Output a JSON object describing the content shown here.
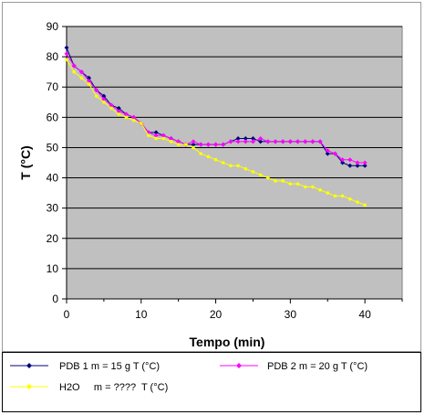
{
  "chart_data": {
    "type": "line",
    "title": "",
    "xlabel": "Tempo (min)",
    "ylabel": "T (°C)",
    "xlim": [
      0,
      45
    ],
    "ylim": [
      0,
      90
    ],
    "xticks": [
      0,
      10,
      20,
      30,
      40
    ],
    "yticks": [
      0,
      10,
      20,
      30,
      40,
      50,
      60,
      70,
      80,
      90
    ],
    "grid": "horizontal",
    "plot_background": "#c0c0c0",
    "legend_position": "bottom",
    "series": [
      {
        "name": "PDB 1  m = 15 g T (°C)",
        "color": "#000080",
        "marker": "diamond",
        "x": [
          0,
          1,
          2,
          3,
          4,
          5,
          6,
          7,
          8,
          9,
          10,
          11,
          12,
          13,
          14,
          15,
          16,
          17,
          18,
          19,
          20,
          21,
          22,
          23,
          24,
          25,
          26,
          27,
          28,
          29,
          30,
          31,
          32,
          33,
          34,
          35,
          36,
          37,
          38,
          39,
          40
        ],
        "y": [
          83,
          77,
          75,
          73,
          69,
          67,
          64,
          63,
          61,
          60,
          58,
          55,
          55,
          54,
          53,
          52,
          51,
          51,
          51,
          51,
          51,
          51,
          52,
          53,
          53,
          53,
          52,
          52,
          52,
          52,
          52,
          52,
          52,
          52,
          52,
          48,
          48,
          45,
          44,
          44,
          44
        ]
      },
      {
        "name": "PDB 2  m = 20 g T (°C)",
        "color": "#ff00ff",
        "marker": "diamond",
        "x": [
          0,
          1,
          2,
          3,
          4,
          5,
          6,
          7,
          8,
          9,
          10,
          11,
          12,
          13,
          14,
          15,
          16,
          17,
          18,
          19,
          20,
          21,
          22,
          23,
          24,
          25,
          26,
          27,
          28,
          29,
          30,
          31,
          32,
          33,
          34,
          35,
          36,
          37,
          38,
          39,
          40
        ],
        "y": [
          81,
          77,
          75,
          72,
          69,
          66,
          64,
          62,
          61,
          60,
          58,
          55,
          54,
          54,
          53,
          52,
          51,
          52,
          51,
          51,
          51,
          51,
          52,
          52,
          52,
          52,
          53,
          52,
          52,
          52,
          52,
          52,
          52,
          52,
          52,
          49,
          48,
          46,
          46,
          45,
          45
        ]
      },
      {
        "name": "H2O     m = ????  T (°C)",
        "color": "#ffff00",
        "marker": "circle",
        "x": [
          0,
          1,
          2,
          3,
          4,
          5,
          6,
          7,
          8,
          9,
          10,
          11,
          12,
          13,
          14,
          15,
          16,
          17,
          18,
          19,
          20,
          21,
          22,
          23,
          24,
          25,
          26,
          27,
          28,
          29,
          30,
          31,
          32,
          33,
          34,
          35,
          36,
          37,
          38,
          39,
          40
        ],
        "y": [
          79,
          75,
          73,
          71,
          67,
          65,
          63,
          61,
          60,
          59,
          58,
          54,
          53,
          53,
          52,
          51,
          51,
          50,
          48,
          47,
          46,
          45,
          44,
          44,
          43,
          42,
          41,
          40,
          39,
          39,
          38,
          38,
          37,
          37,
          36,
          35,
          34,
          34,
          33,
          32,
          31
        ]
      }
    ]
  }
}
